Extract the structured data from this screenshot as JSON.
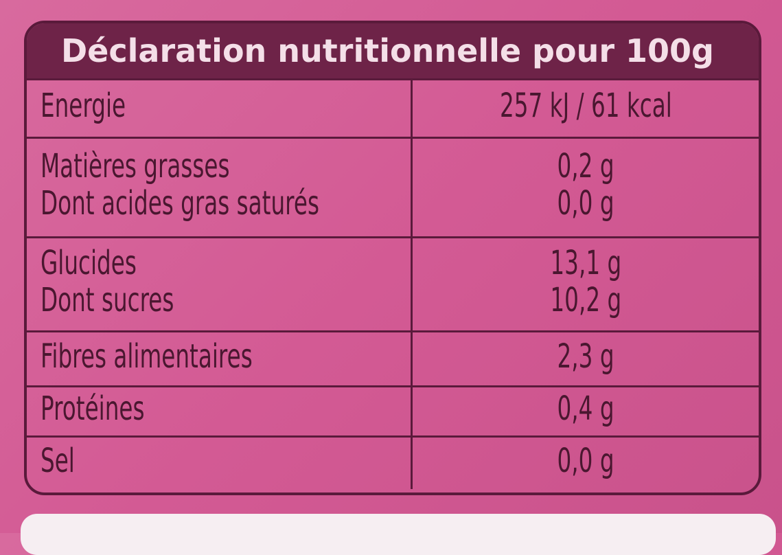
{
  "header": {
    "title": "Déclaration nutritionnelle pour 100g"
  },
  "table": {
    "rows": [
      {
        "labels": [
          "Energie"
        ],
        "values": [
          "257 kJ / 61 kcal"
        ]
      },
      {
        "labels": [
          "Matières grasses",
          "Dont acides gras saturés"
        ],
        "values": [
          "0,2 g",
          "0,0 g"
        ]
      },
      {
        "labels": [
          "Glucides",
          "Dont sucres"
        ],
        "values": [
          "13,1 g",
          "10,2 g"
        ]
      },
      {
        "labels": [
          "Fibres alimentaires"
        ],
        "values": [
          "2,3 g"
        ]
      },
      {
        "labels": [
          "Protéines"
        ],
        "values": [
          "0,4 g"
        ]
      },
      {
        "labels": [
          "Sel"
        ],
        "values": [
          "0,0 g"
        ]
      }
    ]
  }
}
